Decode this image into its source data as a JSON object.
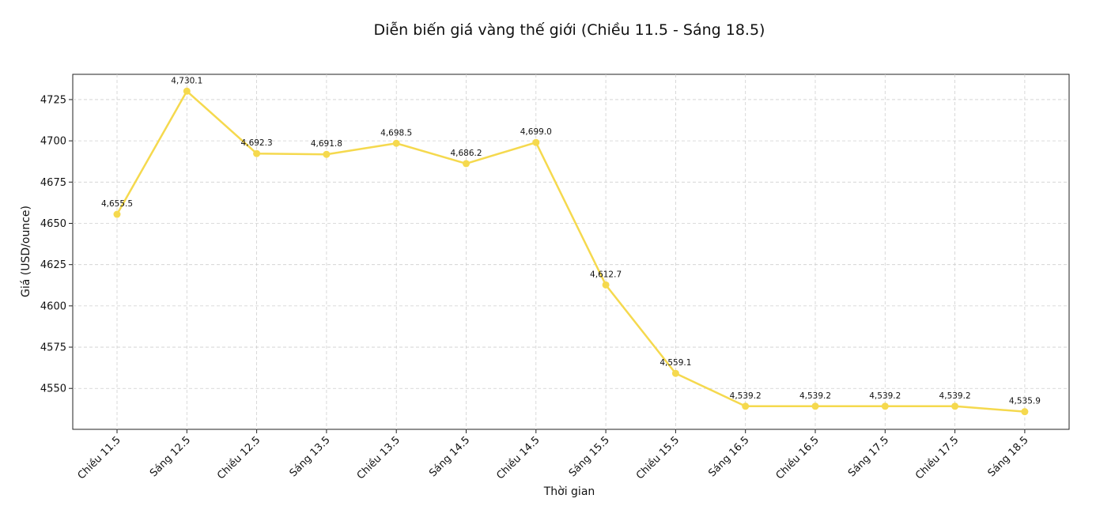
{
  "chart_data": {
    "type": "line",
    "title": "Diễn biến giá vàng thế giới (Chiều 11.5 - Sáng 18.5)",
    "xlabel": "Thời gian",
    "ylabel": "Giá (USD/ounce)",
    "categories": [
      "Chiều 11.5",
      "Sáng 12.5",
      "Chiều 12.5",
      "Sáng 13.5",
      "Chiều 13.5",
      "Sáng 14.5",
      "Chiều 14.5",
      "Sáng 15.5",
      "Chiều 15.5",
      "Sáng 16.5",
      "Chiều 16.5",
      "Sáng 17.5",
      "Chiều 17.5",
      "Sáng 18.5"
    ],
    "series": [
      {
        "values": [
          4655.5,
          4730.1,
          4692.3,
          4691.8,
          4698.5,
          4686.2,
          4699.0,
          4612.7,
          4559.1,
          4539.2,
          4539.2,
          4539.2,
          4539.2,
          4535.9
        ],
        "data_labels": [
          "4,655.5",
          "4,730.1",
          "4,692.3",
          "4,691.8",
          "4,698.5",
          "4,686.2",
          "4,699.0",
          "4,612.7",
          "4,559.1",
          "4,539.2",
          "4,539.2",
          "4,539.2",
          "4,539.2",
          "4,535.9"
        ]
      }
    ],
    "yticks": [
      4550,
      4575,
      4600,
      4625,
      4650,
      4675,
      4700,
      4725
    ],
    "ylim": [
      4525.2,
      4740.3
    ],
    "grid": true,
    "line_color": "#F5D94E"
  }
}
